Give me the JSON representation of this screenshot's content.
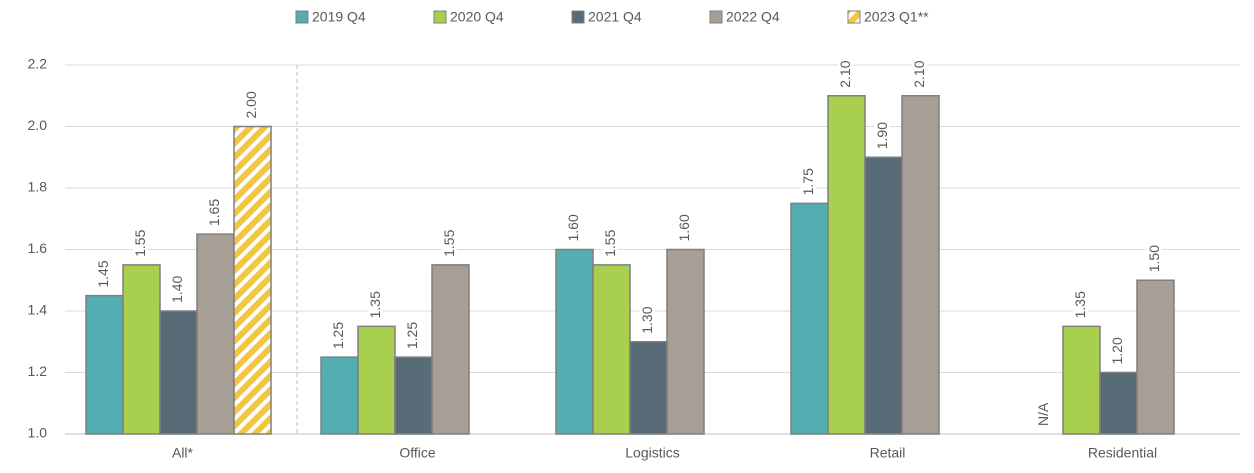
{
  "chart_data": {
    "type": "bar",
    "categories": [
      "All*",
      "Office",
      "Logistics",
      "Retail",
      "Residential"
    ],
    "series": [
      {
        "name": "2019 Q4",
        "color": "#52aeb0",
        "values": [
          1.45,
          1.25,
          1.6,
          1.75,
          null
        ],
        "value_labels": [
          "1.45",
          "1.25",
          "1.60",
          "1.75",
          "N/A"
        ]
      },
      {
        "name": "2020 Q4",
        "color": "#a8d04e",
        "values": [
          1.55,
          1.35,
          1.55,
          2.1,
          1.35
        ],
        "value_labels": [
          "1.55",
          "1.35",
          "1.55",
          "2.10",
          "1.35"
        ]
      },
      {
        "name": "2021 Q4",
        "color": "#596b77",
        "values": [
          1.4,
          1.25,
          1.3,
          1.9,
          1.2
        ],
        "value_labels": [
          "1.40",
          "1.25",
          "1.30",
          "1.90",
          "1.20"
        ]
      },
      {
        "name": "2022 Q4",
        "color": "#a79e95",
        "values": [
          1.65,
          1.55,
          1.6,
          2.1,
          1.5
        ],
        "value_labels": [
          "1.65",
          "1.55",
          "1.60",
          "2.10",
          "1.50"
        ]
      },
      {
        "name": "2023 Q1**",
        "color": "#f2c641",
        "hatch": true,
        "values": [
          2.0,
          null,
          null,
          null,
          null
        ],
        "value_labels": [
          "2.00",
          null,
          null,
          null,
          null
        ]
      }
    ],
    "ylim": [
      1.0,
      2.2
    ],
    "yticks": [
      {
        "value": 1.0,
        "label": "1.0"
      },
      1.2,
      1.4,
      1.6,
      1.8,
      {
        "value": 2.0,
        "label": "2.0"
      },
      2.2
    ],
    "grid": true,
    "legend": "top"
  }
}
